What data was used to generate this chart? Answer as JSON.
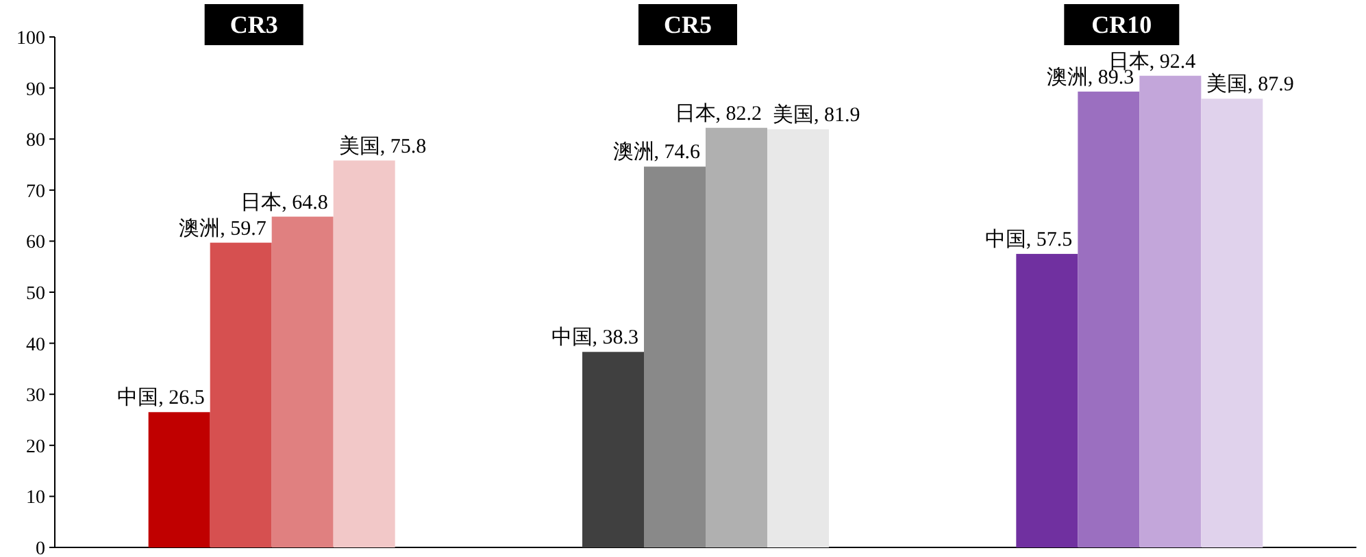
{
  "chart_data": {
    "type": "bar",
    "categories": [
      "CR3",
      "CR5",
      "CR10"
    ],
    "series": [
      {
        "colors": [
          "#c00000",
          "#404040",
          "#7030a0"
        ],
        "values": [
          26.5,
          38.3,
          57.5
        ],
        "value_labels": [
          "中国, 26.5",
          "中国, 38.3",
          "中国, 57.5"
        ]
      },
      {
        "colors": [
          "#d65050",
          "#898989",
          "#9b6fc0"
        ],
        "values": [
          59.7,
          74.6,
          89.3
        ],
        "value_labels": [
          "澳洲, 59.7",
          "澳洲, 74.6",
          "澳洲, 89.3"
        ]
      },
      {
        "colors": [
          "#e08080",
          "#b0b0b0",
          "#c3a6da"
        ],
        "values": [
          64.8,
          82.2,
          92.4
        ],
        "value_labels": [
          "日本, 64.8",
          "日本, 82.2",
          "日本, 92.4"
        ]
      },
      {
        "colors": [
          "#f2c8c8",
          "#e8e8e8",
          "#e0d2ec"
        ],
        "values": [
          75.8,
          81.9,
          87.9
        ],
        "value_labels": [
          "美国, 75.8",
          "美国, 81.9",
          "美国, 87.9"
        ]
      }
    ],
    "ylim": [
      0,
      100
    ],
    "yticks": [
      0,
      10,
      20,
      30,
      40,
      50,
      60,
      70,
      80,
      90,
      100
    ],
    "grid": false
  }
}
